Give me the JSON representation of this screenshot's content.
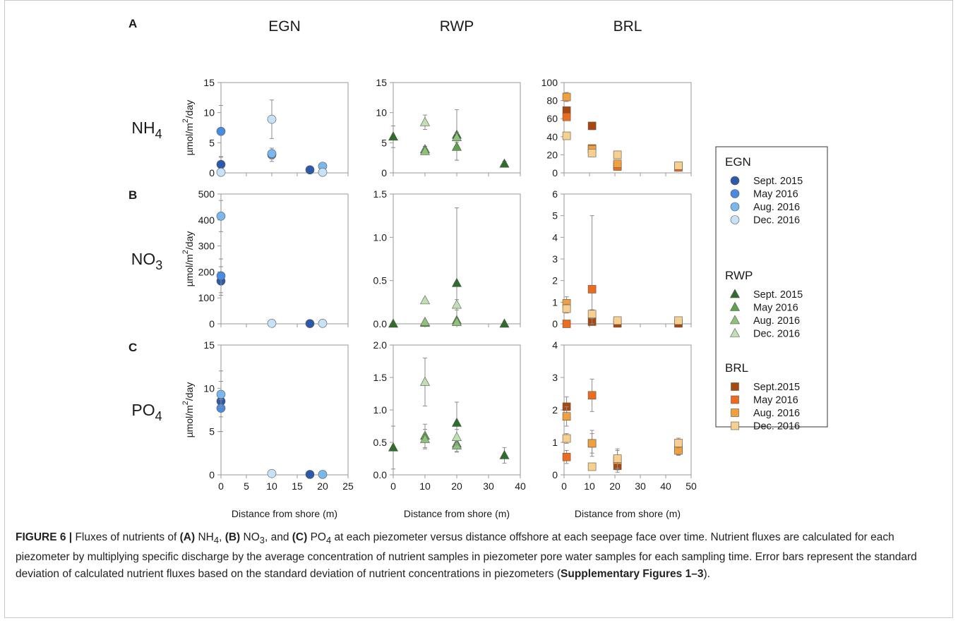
{
  "figure": {
    "panel_letters": [
      "A",
      "B",
      "C"
    ],
    "column_titles": [
      "EGN",
      "RWP",
      "BRL"
    ],
    "row_labels": [
      {
        "base": "NH",
        "sub": "4"
      },
      {
        "base": "NO",
        "sub": "3"
      },
      {
        "base": "PO",
        "sub": "4"
      }
    ],
    "y_axis_label": {
      "pre": "µmol/m",
      "sup": "2",
      "post": "/day"
    },
    "x_axis_label": "Distance from shore (m)"
  },
  "legend": {
    "groups": [
      {
        "title": "EGN",
        "marker": "circle",
        "entries": [
          {
            "label": "Sept. 2015",
            "color": "#2d5aa8"
          },
          {
            "label": "May 2016",
            "color": "#4a8be0"
          },
          {
            "label": "Aug. 2016",
            "color": "#79b7ee"
          },
          {
            "label": "Dec. 2016",
            "color": "#c7e1f7"
          }
        ]
      },
      {
        "title": "RWP",
        "marker": "triangle",
        "entries": [
          {
            "label": "Sept. 2015",
            "color": "#2f6e2a"
          },
          {
            "label": "May 2016",
            "color": "#5ea04c"
          },
          {
            "label": "Aug. 2016",
            "color": "#8cc27a"
          },
          {
            "label": "Dec. 2016",
            "color": "#bfe0b3"
          }
        ]
      },
      {
        "title": "BRL",
        "marker": "square",
        "entries": [
          {
            "label": "Sept.2015",
            "color": "#a8480f"
          },
          {
            "label": "May 2016",
            "color": "#ed6b1e"
          },
          {
            "label": "Aug. 2016",
            "color": "#f2a03d"
          },
          {
            "label": "Dec. 2016",
            "color": "#f7cf8e"
          }
        ]
      }
    ]
  },
  "chart_data": [
    {
      "type": "scatter",
      "panel": "A",
      "site": "EGN",
      "nutrient": "NH4",
      "xlim": [
        0,
        25
      ],
      "ylim": [
        0,
        15
      ],
      "xticks": [
        0,
        5,
        10,
        15,
        20,
        25
      ],
      "yticks": [
        0,
        5,
        10,
        15
      ],
      "ytick_labels": [
        "0",
        "5",
        "10",
        "15"
      ],
      "xlabel": "",
      "marker": "circle",
      "series": [
        {
          "name": "Sept. 2015",
          "color": "#2d5aa8",
          "points": [
            {
              "x": 0,
              "y": 1.4,
              "e": 1.3
            },
            {
              "x": 17.5,
              "y": 0.5
            }
          ]
        },
        {
          "name": "May 2016",
          "color": "#4a8be0",
          "points": [
            {
              "x": 0,
              "y": 6.9,
              "e": 4.3
            },
            {
              "x": 10,
              "y": 3.0,
              "e": 1.1
            }
          ]
        },
        {
          "name": "Aug. 2016",
          "color": "#79b7ee",
          "points": [
            {
              "x": 10,
              "y": 3.2,
              "e": 0.9
            },
            {
              "x": 20,
              "y": 1.1,
              "e": 0.6
            }
          ]
        },
        {
          "name": "Dec. 2016",
          "color": "#c7e1f7",
          "points": [
            {
              "x": 0,
              "y": 0.1
            },
            {
              "x": 10,
              "y": 8.9,
              "e": 3.2
            },
            {
              "x": 20,
              "y": 0.1
            }
          ]
        }
      ]
    },
    {
      "type": "scatter",
      "panel": "A",
      "site": "RWP",
      "nutrient": "NH4",
      "xlim": [
        0,
        40
      ],
      "ylim": [
        0,
        15
      ],
      "xticks": [
        0,
        10,
        20,
        30,
        40
      ],
      "yticks": [
        0,
        5,
        10,
        15
      ],
      "ytick_labels": [
        "0",
        "5",
        "10",
        "15"
      ],
      "xlabel": "",
      "marker": "triangle",
      "series": [
        {
          "name": "Sept. 2015",
          "color": "#2f6e2a",
          "points": [
            {
              "x": 0,
              "y": 6.0,
              "e": 1.8
            },
            {
              "x": 20,
              "y": 6.3,
              "e": 4.2
            },
            {
              "x": 35,
              "y": 1.5,
              "e": 0.4
            }
          ]
        },
        {
          "name": "May 2016",
          "color": "#5ea04c",
          "points": [
            {
              "x": 10,
              "y": 3.9,
              "e": 0.5
            },
            {
              "x": 20,
              "y": 4.3,
              "e": 2.2
            }
          ]
        },
        {
          "name": "Aug. 2016",
          "color": "#8cc27a",
          "points": [
            {
              "x": 10,
              "y": 3.6,
              "e": 0.4
            },
            {
              "x": 20,
              "y": 5.9,
              "e": 0.8
            }
          ]
        },
        {
          "name": "Dec. 2016",
          "color": "#bfe0b3",
          "points": [
            {
              "x": 10,
              "y": 8.4,
              "e": 1.2
            }
          ]
        }
      ]
    },
    {
      "type": "scatter",
      "panel": "A",
      "site": "BRL",
      "nutrient": "NH4",
      "xlim": [
        0,
        50
      ],
      "ylim": [
        0,
        100
      ],
      "xticks": [
        0,
        10,
        20,
        30,
        40,
        50
      ],
      "yticks": [
        0,
        20,
        40,
        60,
        80,
        100
      ],
      "ytick_labels": [
        "0",
        "20",
        "40",
        "60",
        "80",
        "100"
      ],
      "xlabel": "",
      "marker": "square",
      "series": [
        {
          "name": "Sept.2015",
          "color": "#a8480f",
          "points": [
            {
              "x": 1,
              "y": 69,
              "e": 3
            },
            {
              "x": 11,
              "y": 52,
              "e": 4
            },
            {
              "x": 21,
              "y": 8,
              "e": 3
            }
          ]
        },
        {
          "name": "May 2016",
          "color": "#ed6b1e",
          "points": [
            {
              "x": 1,
              "y": 62,
              "e": 3
            },
            {
              "x": 11,
              "y": 27,
              "e": 3
            },
            {
              "x": 21,
              "y": 7,
              "e": 2
            },
            {
              "x": 45,
              "y": 6,
              "e": 2
            }
          ]
        },
        {
          "name": "Aug. 2016",
          "color": "#f2a03d",
          "points": [
            {
              "x": 1,
              "y": 84,
              "e": 5
            },
            {
              "x": 11,
              "y": 26,
              "e": 3
            },
            {
              "x": 21,
              "y": 10,
              "e": 2
            }
          ]
        },
        {
          "name": "Dec. 2016",
          "color": "#f7cf8e",
          "points": [
            {
              "x": 1,
              "y": 41,
              "e": 3
            },
            {
              "x": 11,
              "y": 22,
              "e": 4
            },
            {
              "x": 21,
              "y": 20,
              "e": 4
            },
            {
              "x": 45,
              "y": 8,
              "e": 3
            }
          ]
        }
      ]
    },
    {
      "type": "scatter",
      "panel": "B",
      "site": "EGN",
      "nutrient": "NO3",
      "xlim": [
        0,
        25
      ],
      "ylim": [
        0,
        500
      ],
      "xticks": [
        0,
        5,
        10,
        15,
        20,
        25
      ],
      "yticks": [
        0,
        100,
        200,
        300,
        400,
        500
      ],
      "ytick_labels": [
        "0",
        "100",
        "200",
        "300",
        "400",
        "500"
      ],
      "xlabel": "",
      "marker": "circle",
      "series": [
        {
          "name": "Sept. 2015",
          "color": "#2d5aa8",
          "points": [
            {
              "x": 0,
              "y": 165,
              "e": 55
            },
            {
              "x": 17.5,
              "y": 1
            }
          ]
        },
        {
          "name": "May 2016",
          "color": "#4a8be0",
          "points": [
            {
              "x": 0,
              "y": 185,
              "e": 65
            }
          ]
        },
        {
          "name": "Aug. 2016",
          "color": "#79b7ee",
          "points": [
            {
              "x": 0,
              "y": 415,
              "e": 60
            }
          ]
        },
        {
          "name": "Dec. 2016",
          "color": "#c7e1f7",
          "points": [
            {
              "x": 10,
              "y": 2
            },
            {
              "x": 20,
              "y": 2
            }
          ]
        }
      ]
    },
    {
      "type": "scatter",
      "panel": "B",
      "site": "RWP",
      "nutrient": "NO3",
      "xlim": [
        0,
        40
      ],
      "ylim": [
        0,
        1.5
      ],
      "xticks": [
        0,
        10,
        20,
        30,
        40
      ],
      "yticks": [
        0,
        0.5,
        1.0,
        1.5
      ],
      "ytick_labels": [
        "0.0",
        "0.5",
        "1.0",
        "1.5"
      ],
      "xlabel": "",
      "marker": "triangle",
      "series": [
        {
          "name": "Sept. 2015",
          "color": "#2f6e2a",
          "points": [
            {
              "x": 0,
              "y": 0.0
            },
            {
              "x": 20,
              "y": 0.47,
              "e": 0.87
            },
            {
              "x": 35,
              "y": 0.0
            }
          ]
        },
        {
          "name": "May 2016",
          "color": "#5ea04c",
          "points": [
            {
              "x": 10,
              "y": 0.01
            },
            {
              "x": 20,
              "y": 0.04
            }
          ]
        },
        {
          "name": "Aug. 2016",
          "color": "#8cc27a",
          "points": [
            {
              "x": 10,
              "y": 0.02
            },
            {
              "x": 20,
              "y": 0.02
            }
          ]
        },
        {
          "name": "Dec. 2016",
          "color": "#bfe0b3",
          "points": [
            {
              "x": 10,
              "y": 0.27,
              "e": 0.02
            },
            {
              "x": 20,
              "y": 0.22,
              "e": 0.06
            }
          ]
        }
      ]
    },
    {
      "type": "scatter",
      "panel": "B",
      "site": "BRL",
      "nutrient": "NO3",
      "xlim": [
        0,
        50
      ],
      "ylim": [
        0,
        6
      ],
      "xticks": [
        0,
        10,
        20,
        30,
        40,
        50
      ],
      "yticks": [
        0,
        1,
        2,
        3,
        4,
        5,
        6
      ],
      "ytick_labels": [
        "0",
        "1",
        "2",
        "3",
        "4",
        "5",
        "6"
      ],
      "xlabel": "",
      "marker": "square",
      "series": [
        {
          "name": "Sept.2015",
          "color": "#a8480f",
          "points": [
            {
              "x": 11,
              "y": 0.1
            },
            {
              "x": 21,
              "y": 0.02
            },
            {
              "x": 45,
              "y": 0.02
            }
          ]
        },
        {
          "name": "May 2016",
          "color": "#ed6b1e",
          "points": [
            {
              "x": 1,
              "y": 0.0
            },
            {
              "x": 11,
              "y": 1.6,
              "e": 3.4
            }
          ]
        },
        {
          "name": "Aug. 2016",
          "color": "#f2a03d",
          "points": [
            {
              "x": 1,
              "y": 0.95,
              "e": 0.3
            }
          ]
        },
        {
          "name": "Dec. 2016",
          "color": "#f7cf8e",
          "points": [
            {
              "x": 1,
              "y": 0.7,
              "e": 0.2
            },
            {
              "x": 11,
              "y": 0.45,
              "e": 0.2
            },
            {
              "x": 21,
              "y": 0.15
            },
            {
              "x": 45,
              "y": 0.15
            }
          ]
        }
      ]
    },
    {
      "type": "scatter",
      "panel": "C",
      "site": "EGN",
      "nutrient": "PO4",
      "xlim": [
        0,
        25
      ],
      "ylim": [
        0,
        15
      ],
      "xticks": [
        0,
        5,
        10,
        15,
        20,
        25
      ],
      "yticks": [
        0,
        5,
        10,
        15
      ],
      "ytick_labels": [
        "0",
        "5",
        "10",
        "15"
      ],
      "xlabel": "Distance from shore (m)",
      "marker": "circle",
      "series": [
        {
          "name": "Sept. 2015",
          "color": "#2d5aa8",
          "points": [
            {
              "x": 0,
              "y": 8.5,
              "e": 3.5
            },
            {
              "x": 17.5,
              "y": 0.05
            }
          ]
        },
        {
          "name": "May 2016",
          "color": "#4a8be0",
          "points": [
            {
              "x": 0,
              "y": 7.7,
              "e": 1.0
            }
          ]
        },
        {
          "name": "Aug. 2016",
          "color": "#79b7ee",
          "points": [
            {
              "x": 0,
              "y": 9.3,
              "e": 1.5
            },
            {
              "x": 20,
              "y": 0.05
            }
          ]
        },
        {
          "name": "Dec. 2016",
          "color": "#c7e1f7",
          "points": [
            {
              "x": 10,
              "y": 0.15
            }
          ]
        }
      ]
    },
    {
      "type": "scatter",
      "panel": "C",
      "site": "RWP",
      "nutrient": "PO4",
      "xlim": [
        0,
        40
      ],
      "ylim": [
        0,
        2.0
      ],
      "xticks": [
        0,
        10,
        20,
        30,
        40
      ],
      "yticks": [
        0,
        0.5,
        1.0,
        1.5,
        2.0
      ],
      "ytick_labels": [
        "0.0",
        "0.5",
        "1.0",
        "1.5",
        "2.0"
      ],
      "xlabel": "Distance from shore (m)",
      "marker": "triangle",
      "series": [
        {
          "name": "Sept. 2015",
          "color": "#2f6e2a",
          "points": [
            {
              "x": 0,
              "y": 0.42,
              "e": 0.33
            },
            {
              "x": 20,
              "y": 0.8,
              "e": 0.32
            },
            {
              "x": 35,
              "y": 0.3,
              "e": 0.12
            }
          ]
        },
        {
          "name": "May 2016",
          "color": "#5ea04c",
          "points": [
            {
              "x": 10,
              "y": 0.6,
              "e": 0.18
            },
            {
              "x": 20,
              "y": 0.48,
              "e": 0.12
            }
          ]
        },
        {
          "name": "Aug. 2016",
          "color": "#8cc27a",
          "points": [
            {
              "x": 10,
              "y": 0.55,
              "e": 0.15
            },
            {
              "x": 20,
              "y": 0.45,
              "e": 0.1
            }
          ]
        },
        {
          "name": "Dec. 2016",
          "color": "#bfe0b3",
          "points": [
            {
              "x": 10,
              "y": 1.43,
              "e": 0.37
            },
            {
              "x": 20,
              "y": 0.58,
              "e": 0.12
            }
          ]
        }
      ]
    },
    {
      "type": "scatter",
      "panel": "C",
      "site": "BRL",
      "nutrient": "PO4",
      "xlim": [
        0,
        50
      ],
      "ylim": [
        0,
        4
      ],
      "xticks": [
        0,
        10,
        20,
        30,
        40,
        50
      ],
      "yticks": [
        0,
        1,
        2,
        3,
        4
      ],
      "ytick_labels": [
        "0",
        "1",
        "2",
        "3",
        "4"
      ],
      "xlabel": "Distance from shore (m)",
      "marker": "square",
      "series": [
        {
          "name": "Sept.2015",
          "color": "#a8480f",
          "points": [
            {
              "x": 1,
              "y": 2.1,
              "e": 0.3
            },
            {
              "x": 11,
              "y": 0.97,
              "e": 0.3
            },
            {
              "x": 21,
              "y": 0.28,
              "e": 0.2
            },
            {
              "x": 45,
              "y": 0.82,
              "e": 0.2
            }
          ]
        },
        {
          "name": "May 2016",
          "color": "#ed6b1e",
          "points": [
            {
              "x": 1,
              "y": 0.55,
              "e": 0.2
            },
            {
              "x": 11,
              "y": 2.45,
              "e": 0.5
            }
          ]
        },
        {
          "name": "Aug. 2016",
          "color": "#f2a03d",
          "points": [
            {
              "x": 1,
              "y": 1.8,
              "e": 0.3
            },
            {
              "x": 11,
              "y": 0.97,
              "e": 0.4
            },
            {
              "x": 21,
              "y": 0.45,
              "e": 0.3
            },
            {
              "x": 45,
              "y": 0.75,
              "e": 0.15
            }
          ]
        },
        {
          "name": "Dec. 2016",
          "color": "#f7cf8e",
          "points": [
            {
              "x": 1,
              "y": 1.12,
              "e": 0.15
            },
            {
              "x": 11,
              "y": 0.25,
              "e": 0.1
            },
            {
              "x": 21,
              "y": 0.5,
              "e": 0.3
            },
            {
              "x": 45,
              "y": 0.98,
              "e": 0.15
            }
          ]
        }
      ]
    }
  ],
  "caption": {
    "label": "FIGURE 6 |",
    "t1": " Fluxes of nutrients of ",
    "a": "(A)",
    "t2": " NH",
    "s1": "4",
    "t3": ", ",
    "b": "(B)",
    "t4": " NO",
    "s2": "3",
    "t5": ", and ",
    "c": "(C)",
    "t6": " PO",
    "s3": "4",
    "t7": " at each piezometer versus distance offshore at each seepage face over time. Nutrient fluxes are calculated for each piezometer by multiplying specific discharge by the average concentration of nutrient samples in piezometer pore water samples for each sampling time. Error bars represent the standard deviation of calculated nutrient fluxes based on the standard deviation of nutrient concentrations in piezometers (",
    "ref": "Supplementary Figures 1–3",
    "t8": ")."
  }
}
